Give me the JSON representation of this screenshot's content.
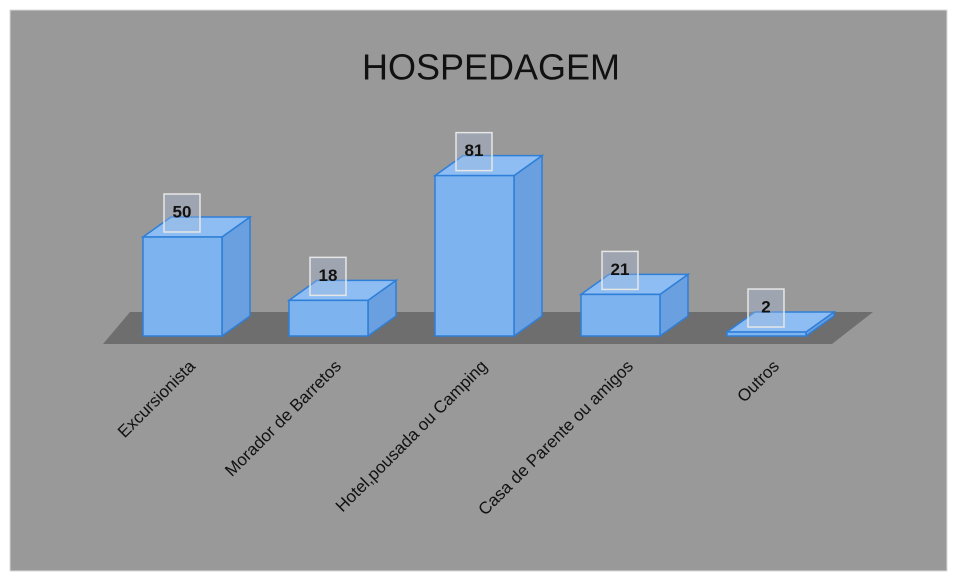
{
  "chart_data": {
    "type": "bar3d",
    "title": "HOSPEDAGEM",
    "categories": [
      "Excursionista",
      "Morador de Barretos",
      "Hotel,pousada ou Camping",
      "Casa de Parente ou amigos",
      "Outros"
    ],
    "values": [
      50,
      18,
      81,
      21,
      2
    ],
    "color": "#7db3ee"
  }
}
